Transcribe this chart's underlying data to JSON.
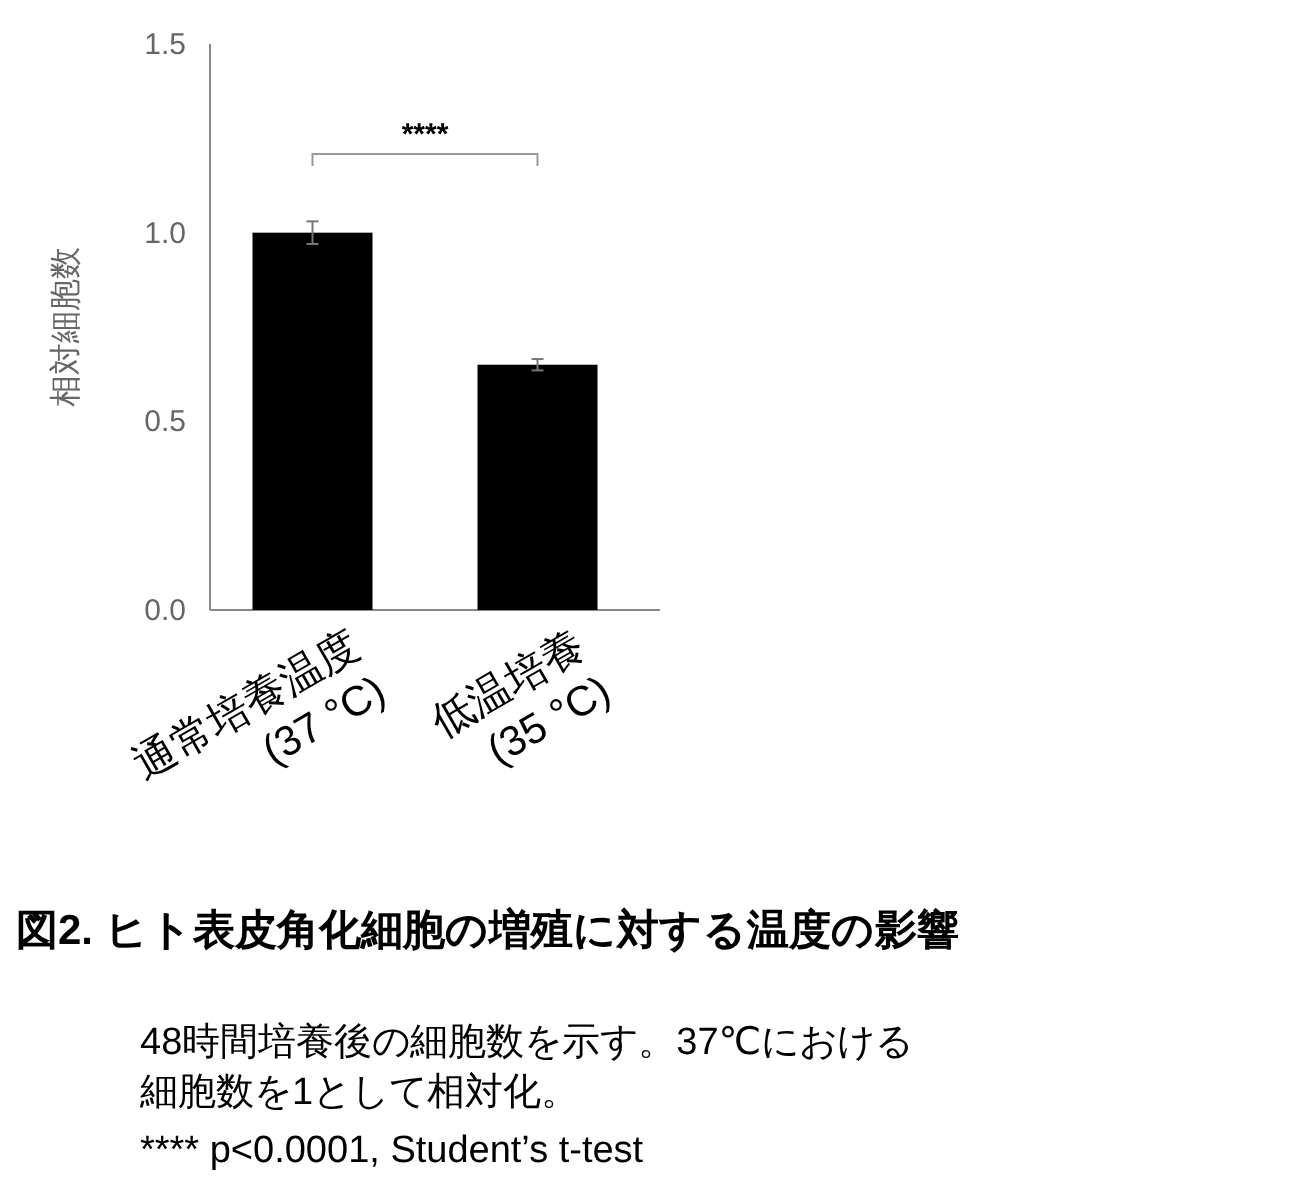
{
  "chart_data": {
    "type": "bar",
    "title": "図2. ヒト表皮角化細胞の増殖に対する温度の影響",
    "ylabel": "相対細胞数",
    "categories": [
      "通常培養温度\n(37 °C)",
      "低温培養\n(35 °C)"
    ],
    "values": [
      1.0,
      0.65
    ],
    "errors": [
      0.03,
      0.015
    ],
    "color": "#000000",
    "ylim": [
      0,
      1.5
    ],
    "yticks": [
      {
        "value": 0,
        "label": "0.0"
      },
      {
        "value": 0.5,
        "label": "0.5"
      },
      {
        "value": 1,
        "label": "1.0"
      },
      {
        "value": 1.5,
        "label": "1.5"
      }
    ],
    "grid": false,
    "annotations": [
      "****",
      "48時間培養後の細胞数を示す。37℃における",
      "細胞数を1として相対化。",
      "**** p<0.0001, Student’s t-test"
    ]
  }
}
